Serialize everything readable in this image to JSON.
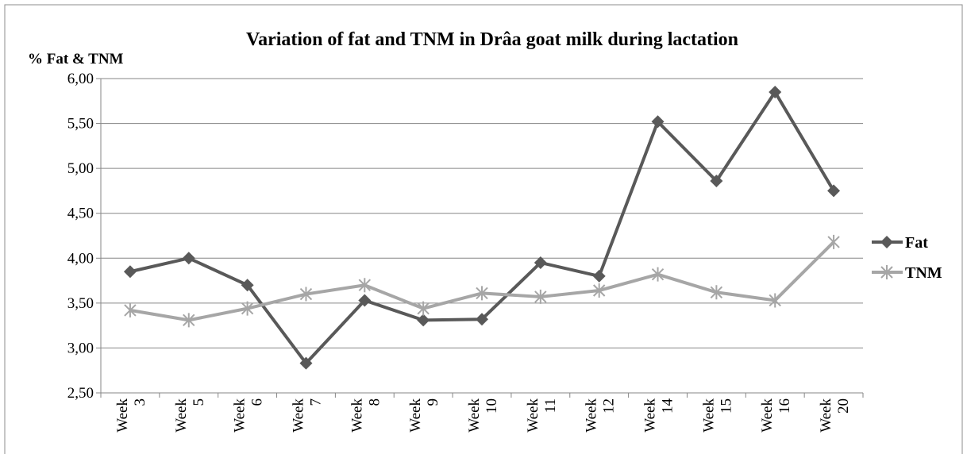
{
  "chart_data": {
    "type": "line",
    "title": "Variation of fat and TNM in Drâa goat milk during lactation",
    "ylabel": "% Fat & TNM",
    "xlabel": "",
    "categories": [
      [
        "Week",
        "3"
      ],
      [
        "Week",
        "5"
      ],
      [
        "Week",
        "6"
      ],
      [
        "Week",
        "7"
      ],
      [
        "Week",
        "8"
      ],
      [
        "Week",
        "9"
      ],
      [
        "Week",
        "10"
      ],
      [
        "Week",
        "11"
      ],
      [
        "Week",
        "12"
      ],
      [
        "Week",
        "14"
      ],
      [
        "Week",
        "15"
      ],
      [
        "Week",
        "16"
      ],
      [
        "Week",
        "20"
      ]
    ],
    "ylim": [
      2.5,
      6.0
    ],
    "yticks": [
      "2,50",
      "3,00",
      "3,50",
      "4,00",
      "4,50",
      "5,00",
      "5,50",
      "6,00"
    ],
    "grid": true,
    "legend": "right",
    "series": [
      {
        "name": "Fat",
        "color": "#595959",
        "marker": "diamond",
        "values": [
          3.85,
          4.0,
          3.7,
          2.83,
          3.53,
          3.31,
          3.32,
          3.95,
          3.8,
          5.52,
          4.86,
          5.85,
          4.75
        ]
      },
      {
        "name": "TNM",
        "color": "#a6a6a6",
        "marker": "star",
        "values": [
          3.42,
          3.31,
          3.44,
          3.6,
          3.7,
          3.44,
          3.61,
          3.57,
          3.64,
          3.82,
          3.62,
          3.53,
          4.18
        ]
      }
    ]
  }
}
